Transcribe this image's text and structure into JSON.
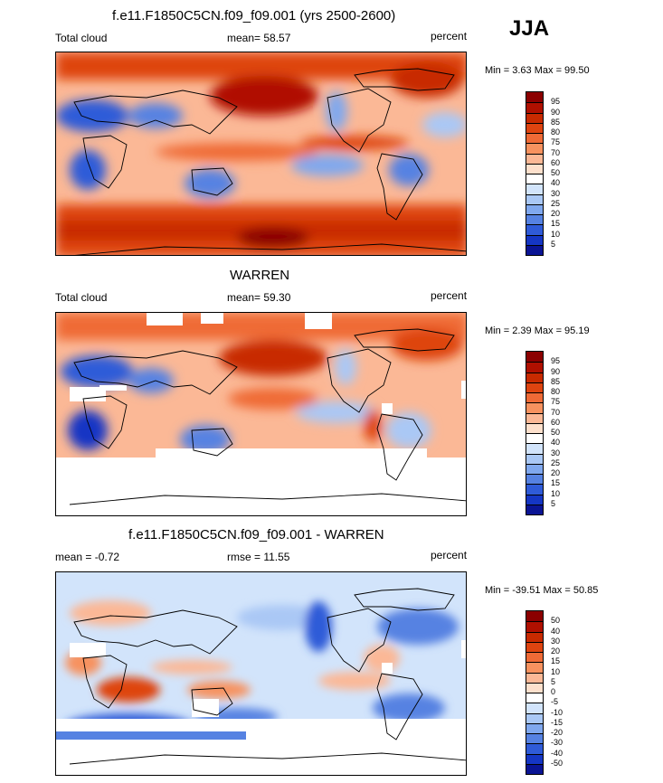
{
  "season": "JJA",
  "panels": [
    {
      "id": "model",
      "title": "f.e11.F1850C5CN.f09_f09.001 (yrs 2500-2600)",
      "left_label": "Total cloud",
      "center_label": "mean=  58.57",
      "right_label": "percent",
      "minmax": "Min =   3.63 Max =  99.50",
      "colorbar_labels": [
        "95",
        "90",
        "85",
        "80",
        "75",
        "70",
        "60",
        "50",
        "40",
        "30",
        "25",
        "20",
        "15",
        "10",
        "5"
      ]
    },
    {
      "id": "obs",
      "title": "WARREN",
      "left_label": "Total cloud",
      "center_label": "mean=  59.30",
      "right_label": "percent",
      "minmax": "Min =   2.39 Max =  95.19",
      "colorbar_labels": [
        "95",
        "90",
        "85",
        "80",
        "75",
        "70",
        "60",
        "50",
        "40",
        "30",
        "25",
        "20",
        "15",
        "10",
        "5"
      ]
    },
    {
      "id": "diff",
      "title": "f.e11.F1850C5CN.f09_f09.001 - WARREN",
      "left_label": "mean =  -0.72",
      "center_label": "rmse =  11.55",
      "right_label": "percent",
      "minmax": "Min = -39.51 Max =  50.85",
      "colorbar_labels": [
        "50",
        "40",
        "30",
        "20",
        "15",
        "10",
        "5",
        "0",
        "-5",
        "-10",
        "-15",
        "-20",
        "-30",
        "-40",
        "-50"
      ]
    }
  ],
  "colors": {
    "colorbar_16": [
      "#8b0000",
      "#b01000",
      "#c82a00",
      "#de4410",
      "#ef6a36",
      "#f7925f",
      "#fbb896",
      "#fde0cc",
      "#ffffff",
      "#d2e4fb",
      "#aac8f5",
      "#80a8ee",
      "#5682e2",
      "#2f5bd8",
      "#1536c4",
      "#0a1494"
    ]
  }
}
